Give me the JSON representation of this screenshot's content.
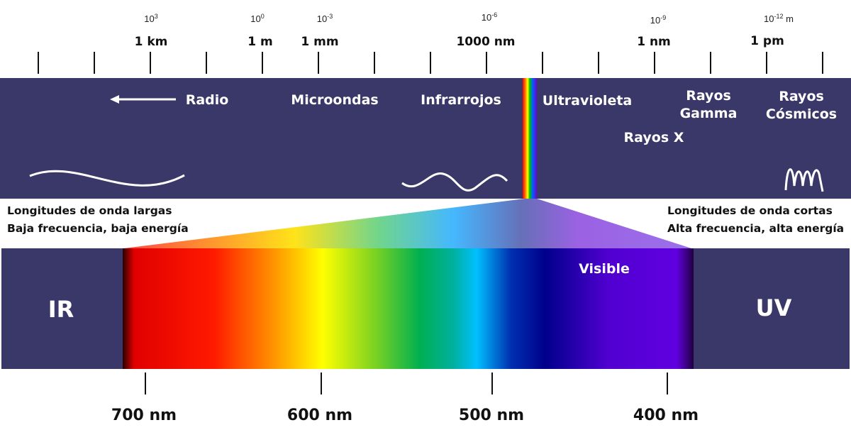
{
  "colors": {
    "band": "#3a3868",
    "tick": "#111111"
  },
  "scale": {
    "exponents": [
      {
        "text": "10",
        "sup": "3",
        "unit": ""
      },
      {
        "text": "10",
        "sup": "0",
        "unit": ""
      },
      {
        "text": "10",
        "sup": "-3",
        "unit": ""
      },
      {
        "text": "10",
        "sup": "-6",
        "unit": ""
      },
      {
        "text": "10",
        "sup": "-9",
        "unit": ""
      },
      {
        "text": "10",
        "sup": "-12",
        "unit": " m"
      }
    ],
    "units": [
      "1 km",
      "1 m",
      "1 mm",
      "1000 nm",
      "1 nm",
      "1 pm"
    ]
  },
  "bands": {
    "radio": "Radio",
    "microwave": "Microondas",
    "infrared": "Infrarrojos",
    "ultraviolet": "Ultravioleta",
    "xray": "Rayos X",
    "gamma1": "Rayos",
    "gamma2": "Gamma",
    "cosmic1": "Rayos",
    "cosmic2": "Cósmicos"
  },
  "notes": {
    "long1": "Longitudes de onda largas",
    "long2": "Baja frecuencia, baja energía",
    "short1": "Longitudes de onda cortas",
    "short2": "Alta frecuencia, alta energía"
  },
  "visible": {
    "label": "Visible",
    "ir": "IR",
    "uv": "UV",
    "wavelengths": [
      "700 nm",
      "600 nm",
      "500 nm",
      "400 nm"
    ]
  }
}
